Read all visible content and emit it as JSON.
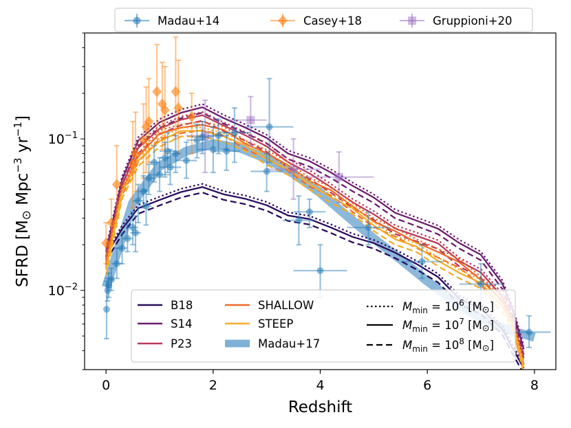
{
  "chart_data": {
    "type": "line",
    "title": "",
    "xlabel": "Redshift",
    "ylabel_parts": {
      "main": "SFRD [M",
      "sun": "⊙",
      "mid": " Mpc",
      "exp1": "−3",
      "mid2": " yr",
      "exp2": "−1",
      "close": "]"
    },
    "xlim": [
      -0.4,
      8.4
    ],
    "ylim": [
      0.003,
      0.5
    ],
    "yscale": "log",
    "xticks": [
      0,
      2,
      4,
      6,
      8
    ],
    "xtick_labels": [
      "0",
      "2",
      "4",
      "6",
      "8"
    ],
    "yticks": [
      0.01,
      0.1
    ],
    "ytick_labels": [
      {
        "base": "10",
        "exp": "−2"
      },
      {
        "base": "10",
        "exp": "−1"
      }
    ],
    "grid": false,
    "obs_legend": {
      "placement": "top-outside",
      "entries": [
        {
          "label": "Madau+14",
          "color": "#1f77b4",
          "marker": "circle"
        },
        {
          "label": "Casey+18",
          "color": "#ff7f0e",
          "marker": "diamond"
        },
        {
          "label": "Gruppioni+20",
          "color": "#9467bd",
          "marker": "square"
        }
      ]
    },
    "model_legend": {
      "placement": "lower-center",
      "entries": [
        {
          "label": "B18",
          "color": "#2a0b5e"
        },
        {
          "label": "S14",
          "color": "#6b1d6e"
        },
        {
          "label": "P23",
          "color": "#b83a5a"
        },
        {
          "label": "SHALLOW",
          "color": "#ee6a2c"
        },
        {
          "label": "STEEP",
          "color": "#f4ae2a"
        },
        {
          "label": "Madau+17",
          "color": "#7fb0d6"
        }
      ]
    },
    "mmin_legend": [
      {
        "prefix": "M",
        "sub": "min",
        "value": " = 10",
        "exp": "6",
        "unit": " [M",
        "sun": "⊙",
        "close": "]",
        "style": "dotted"
      },
      {
        "prefix": "M",
        "sub": "min",
        "value": " = 10",
        "exp": "7",
        "unit": " [M",
        "sun": "⊙",
        "close": "]",
        "style": "solid"
      },
      {
        "prefix": "M",
        "sub": "min",
        "value": " = 10",
        "exp": "8",
        "unit": " [M",
        "sun": "⊙",
        "close": "]",
        "style": "dashed"
      }
    ],
    "madau17_band": {
      "color": "#7fb0d6",
      "x": [
        0,
        0.5,
        1,
        1.5,
        2,
        2.5,
        3,
        3.5,
        4,
        4.5,
        5,
        5.5,
        6,
        6.5,
        7,
        7.5,
        8
      ],
      "y": [
        0.0105,
        0.038,
        0.066,
        0.083,
        0.093,
        0.087,
        0.074,
        0.059,
        0.044,
        0.031,
        0.022,
        0.016,
        0.0115,
        0.0085,
        0.0065,
        0.0055,
        0.0049
      ]
    },
    "series": [
      {
        "name": "B18",
        "color": "#2a0b5e",
        "x": [
          0,
          0.3,
          0.6,
          1,
          1.4,
          1.8,
          2.2,
          2.6,
          3,
          3.4,
          3.8,
          4.2,
          4.6,
          5,
          5.4,
          5.8,
          6.2,
          6.6,
          7,
          7.4,
          7.6,
          7.8
        ],
        "y": [
          0.017,
          0.026,
          0.034,
          0.04,
          0.045,
          0.047,
          0.044,
          0.04,
          0.036,
          0.032,
          0.029,
          0.026,
          0.023,
          0.02,
          0.018,
          0.015,
          0.012,
          0.009,
          0.0075,
          0.0055,
          0.0042,
          0.003
        ]
      },
      {
        "name": "S14",
        "color": "#6b1d6e",
        "x": [
          0,
          0.3,
          0.6,
          1,
          1.4,
          1.8,
          2.2,
          2.6,
          3,
          3.4,
          3.8,
          4.2,
          4.6,
          5,
          5.4,
          5.8,
          6.2,
          6.6,
          7,
          7.4,
          7.6,
          7.8
        ],
        "y": [
          0.018,
          0.055,
          0.095,
          0.13,
          0.15,
          0.158,
          0.14,
          0.118,
          0.1,
          0.082,
          0.07,
          0.06,
          0.05,
          0.04,
          0.033,
          0.029,
          0.025,
          0.021,
          0.017,
          0.011,
          0.0075,
          0.004
        ]
      },
      {
        "name": "P23",
        "color": "#b83a5a",
        "x": [
          0,
          0.3,
          0.6,
          1,
          1.4,
          1.8,
          2.2,
          2.6,
          3,
          3.4,
          3.8,
          4.2,
          4.6,
          5,
          5.4,
          5.8,
          6.2,
          6.6,
          7,
          7.4,
          7.6,
          7.8
        ],
        "y": [
          0.016,
          0.05,
          0.085,
          0.118,
          0.135,
          0.14,
          0.125,
          0.105,
          0.088,
          0.072,
          0.058,
          0.048,
          0.039,
          0.031,
          0.026,
          0.023,
          0.02,
          0.016,
          0.013,
          0.009,
          0.0065,
          0.0035
        ]
      },
      {
        "name": "SHALLOW",
        "color": "#ee6a2c",
        "x": [
          0,
          0.3,
          0.6,
          1,
          1.4,
          1.8,
          2.2,
          2.6,
          3,
          3.4,
          3.8,
          4.2,
          4.6,
          5,
          5.4,
          5.8,
          6.2,
          6.6,
          7,
          7.4,
          7.6,
          7.8
        ],
        "y": [
          0.015,
          0.046,
          0.078,
          0.106,
          0.12,
          0.125,
          0.112,
          0.095,
          0.08,
          0.066,
          0.054,
          0.045,
          0.036,
          0.029,
          0.024,
          0.021,
          0.018,
          0.015,
          0.012,
          0.0085,
          0.006,
          0.0033
        ]
      },
      {
        "name": "STEEP",
        "color": "#f4ae2a",
        "x": [
          0,
          0.3,
          0.6,
          1,
          1.4,
          1.8,
          2.2,
          2.6,
          3,
          3.4,
          3.8,
          4.2,
          4.6,
          5,
          5.4,
          5.8,
          6.2,
          6.6,
          7,
          7.4,
          7.6,
          7.8
        ],
        "y": [
          0.014,
          0.043,
          0.072,
          0.098,
          0.11,
          0.115,
          0.104,
          0.089,
          0.075,
          0.062,
          0.05,
          0.042,
          0.034,
          0.027,
          0.022,
          0.019,
          0.016,
          0.013,
          0.011,
          0.008,
          0.0058,
          0.0031
        ]
      }
    ],
    "madau14": {
      "color": "#1f77b4",
      "points": [
        {
          "x": 0.01,
          "y": 0.0075,
          "ylo": 0.0048,
          "yhi": 0.0115,
          "xlo": 0,
          "xhi": 0.02
        },
        {
          "x": 0.03,
          "y": 0.01,
          "ylo": 0.0085,
          "yhi": 0.012,
          "xlo": 0.01,
          "xhi": 0.05
        },
        {
          "x": 0.05,
          "y": 0.0108,
          "ylo": 0.009,
          "yhi": 0.013,
          "xlo": 0.02,
          "xhi": 0.08
        },
        {
          "x": 0.1,
          "y": 0.0118,
          "ylo": 0.01,
          "yhi": 0.014,
          "xlo": 0.05,
          "xhi": 0.15
        },
        {
          "x": 0.2,
          "y": 0.015,
          "ylo": 0.012,
          "yhi": 0.019,
          "xlo": 0.1,
          "xhi": 0.3
        },
        {
          "x": 0.3,
          "y": 0.019,
          "ylo": 0.015,
          "yhi": 0.024,
          "xlo": 0.2,
          "xhi": 0.4
        },
        {
          "x": 0.4,
          "y": 0.022,
          "ylo": 0.018,
          "yhi": 0.027,
          "xlo": 0.3,
          "xhi": 0.5
        },
        {
          "x": 0.5,
          "y": 0.026,
          "ylo": 0.02,
          "yhi": 0.033,
          "xlo": 0.4,
          "xhi": 0.6
        },
        {
          "x": 0.55,
          "y": 0.024,
          "ylo": 0.018,
          "yhi": 0.031,
          "xlo": 0.45,
          "xhi": 0.65
        },
        {
          "x": 0.6,
          "y": 0.039,
          "ylo": 0.028,
          "yhi": 0.05,
          "xlo": 0.5,
          "xhi": 0.7
        },
        {
          "x": 0.7,
          "y": 0.045,
          "ylo": 0.035,
          "yhi": 0.057,
          "xlo": 0.6,
          "xhi": 0.8
        },
        {
          "x": 0.75,
          "y": 0.036,
          "ylo": 0.027,
          "yhi": 0.046,
          "xlo": 0.65,
          "xhi": 0.85
        },
        {
          "x": 0.8,
          "y": 0.055,
          "ylo": 0.043,
          "yhi": 0.068,
          "xlo": 0.7,
          "xhi": 0.9
        },
        {
          "x": 0.9,
          "y": 0.07,
          "ylo": 0.052,
          "yhi": 0.09,
          "xlo": 0.8,
          "xhi": 1.0
        },
        {
          "x": 1.0,
          "y": 0.058,
          "ylo": 0.045,
          "yhi": 0.075,
          "xlo": 0.8,
          "xhi": 1.2
        },
        {
          "x": 1.1,
          "y": 0.075,
          "ylo": 0.056,
          "yhi": 0.095,
          "xlo": 1.0,
          "xhi": 1.2
        },
        {
          "x": 1.15,
          "y": 0.083,
          "ylo": 0.06,
          "yhi": 0.11,
          "xlo": 1.0,
          "xhi": 1.3
        },
        {
          "x": 1.2,
          "y": 0.065,
          "ylo": 0.05,
          "yhi": 0.085,
          "xlo": 1.0,
          "xhi": 1.4
        },
        {
          "x": 1.3,
          "y": 0.08,
          "ylo": 0.06,
          "yhi": 0.105,
          "xlo": 1.2,
          "xhi": 1.4
        },
        {
          "x": 1.5,
          "y": 0.072,
          "ylo": 0.055,
          "yhi": 0.095,
          "xlo": 1.3,
          "xhi": 1.7
        },
        {
          "x": 1.7,
          "y": 0.098,
          "ylo": 0.075,
          "yhi": 0.125,
          "xlo": 1.5,
          "xhi": 1.9
        },
        {
          "x": 1.8,
          "y": 0.103,
          "ylo": 0.08,
          "yhi": 0.13,
          "xlo": 1.6,
          "xhi": 2.0
        },
        {
          "x": 2.0,
          "y": 0.085,
          "ylo": 0.06,
          "yhi": 0.12,
          "xlo": 1.7,
          "xhi": 2.3
        },
        {
          "x": 2.1,
          "y": 0.105,
          "ylo": 0.08,
          "yhi": 0.135,
          "xlo": 1.9,
          "xhi": 2.3
        },
        {
          "x": 2.25,
          "y": 0.083,
          "ylo": 0.062,
          "yhi": 0.11,
          "xlo": 2.0,
          "xhi": 2.5
        },
        {
          "x": 2.4,
          "y": 0.11,
          "ylo": 0.07,
          "yhi": 0.16,
          "xlo": 2.1,
          "xhi": 2.7
        },
        {
          "x": 3.0,
          "y": 0.061,
          "ylo": 0.045,
          "yhi": 0.08,
          "xlo": 2.7,
          "xhi": 3.3
        },
        {
          "x": 3.05,
          "y": 0.12,
          "ylo": 0.07,
          "yhi": 0.25,
          "xlo": 2.6,
          "xhi": 3.5
        },
        {
          "x": 3.6,
          "y": 0.029,
          "ylo": 0.02,
          "yhi": 0.042,
          "xlo": 3.3,
          "xhi": 3.9
        },
        {
          "x": 3.8,
          "y": 0.033,
          "ylo": 0.026,
          "yhi": 0.04,
          "xlo": 3.5,
          "xhi": 4.1
        },
        {
          "x": 4.0,
          "y": 0.0135,
          "ylo": 0.009,
          "yhi": 0.02,
          "xlo": 3.5,
          "xhi": 4.5
        },
        {
          "x": 4.9,
          "y": 0.026,
          "ylo": 0.02,
          "yhi": 0.033,
          "xlo": 4.5,
          "xhi": 5.3
        },
        {
          "x": 5.9,
          "y": 0.0155,
          "ylo": 0.012,
          "yhi": 0.02,
          "xlo": 5.5,
          "xhi": 6.3
        },
        {
          "x": 7.0,
          "y": 0.011,
          "ylo": 0.008,
          "yhi": 0.015,
          "xlo": 6.6,
          "xhi": 7.4
        },
        {
          "x": 7.9,
          "y": 0.0053,
          "ylo": 0.0042,
          "yhi": 0.0068,
          "xlo": 7.5,
          "xhi": 8.3
        }
      ]
    },
    "casey18": {
      "color": "#ff7f0e",
      "points": [
        {
          "x": 0.0,
          "y": 0.0205,
          "ylo": 0.015,
          "yhi": 0.028
        },
        {
          "x": 0.1,
          "y": 0.028,
          "ylo": 0.02,
          "yhi": 0.04
        },
        {
          "x": 0.2,
          "y": 0.05,
          "ylo": 0.03,
          "yhi": 0.09
        },
        {
          "x": 0.5,
          "y": 0.068,
          "ylo": 0.035,
          "yhi": 0.13
        },
        {
          "x": 0.55,
          "y": 0.08,
          "ylo": 0.045,
          "yhi": 0.15
        },
        {
          "x": 0.7,
          "y": 0.098,
          "ylo": 0.055,
          "yhi": 0.17
        },
        {
          "x": 0.75,
          "y": 0.12,
          "ylo": 0.06,
          "yhi": 0.22
        },
        {
          "x": 0.8,
          "y": 0.13,
          "ylo": 0.07,
          "yhi": 0.25
        },
        {
          "x": 0.95,
          "y": 0.205,
          "ylo": 0.1,
          "yhi": 0.42
        },
        {
          "x": 1.05,
          "y": 0.17,
          "ylo": 0.085,
          "yhi": 0.32
        },
        {
          "x": 1.1,
          "y": 0.155,
          "ylo": 0.08,
          "yhi": 0.3
        },
        {
          "x": 1.3,
          "y": 0.205,
          "ylo": 0.1,
          "yhi": 0.47
        },
        {
          "x": 1.35,
          "y": 0.16,
          "ylo": 0.08,
          "yhi": 0.33
        },
        {
          "x": 1.6,
          "y": 0.14,
          "ylo": 0.08,
          "yhi": 0.2
        }
      ]
    },
    "gruppioni20": {
      "color": "#9467bd",
      "points": [
        {
          "x": 1.85,
          "y": 0.105,
          "ylo": 0.06,
          "yhi": 0.18,
          "xlo": 1.5,
          "xhi": 2.2
        },
        {
          "x": 2.7,
          "y": 0.133,
          "ylo": 0.09,
          "yhi": 0.19,
          "xlo": 2.3,
          "xhi": 3.0
        },
        {
          "x": 3.5,
          "y": 0.063,
          "ylo": 0.04,
          "yhi": 0.1,
          "xlo": 3.0,
          "xhi": 4.0
        },
        {
          "x": 4.35,
          "y": 0.056,
          "ylo": 0.038,
          "yhi": 0.082,
          "xlo": 3.7,
          "xhi": 5.0
        }
      ]
    }
  }
}
